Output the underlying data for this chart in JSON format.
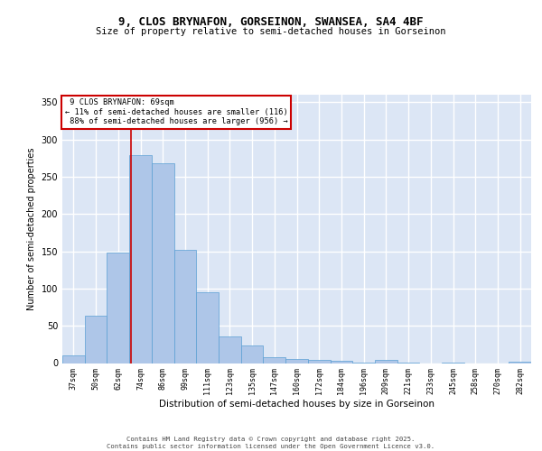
{
  "title_line1": "9, CLOS BRYNAFON, GORSEINON, SWANSEA, SA4 4BF",
  "title_line2": "Size of property relative to semi-detached houses in Gorseinon",
  "xlabel": "Distribution of semi-detached houses by size in Gorseinon",
  "ylabel": "Number of semi-detached properties",
  "categories": [
    "37sqm",
    "50sqm",
    "62sqm",
    "74sqm",
    "86sqm",
    "99sqm",
    "111sqm",
    "123sqm",
    "135sqm",
    "147sqm",
    "160sqm",
    "172sqm",
    "184sqm",
    "196sqm",
    "209sqm",
    "221sqm",
    "233sqm",
    "245sqm",
    "258sqm",
    "270sqm",
    "282sqm"
  ],
  "values": [
    10,
    63,
    148,
    279,
    268,
    152,
    95,
    36,
    23,
    8,
    5,
    4,
    3,
    1,
    4,
    1,
    0,
    1,
    0,
    0,
    2
  ],
  "bar_color": "#aec6e8",
  "bar_edge_color": "#5a9fd4",
  "vline_x_index": 2.58,
  "vline_color": "#cc0000",
  "annotation_box_color": "#cc0000",
  "property_label": "9 CLOS BRYNAFON: 69sqm",
  "smaller_pct": "11%",
  "smaller_count": 116,
  "larger_pct": "88%",
  "larger_count": 956,
  "ylim": [
    0,
    360
  ],
  "yticks": [
    0,
    50,
    100,
    150,
    200,
    250,
    300,
    350
  ],
  "bg_color": "#dce6f5",
  "fig_bg_color": "#ffffff",
  "grid_color": "#ffffff",
  "footer_line1": "Contains HM Land Registry data © Crown copyright and database right 2025.",
  "footer_line2": "Contains public sector information licensed under the Open Government Licence v3.0."
}
